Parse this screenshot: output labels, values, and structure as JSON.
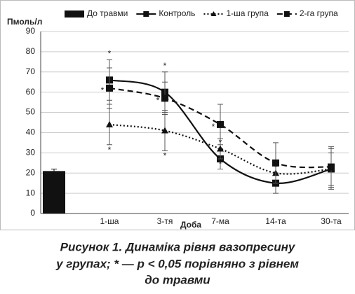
{
  "chart_data": {
    "type": "line",
    "y_label": "Пмоль/л",
    "x_label": "Доба",
    "categories": [
      null,
      "1-ша",
      "3-тя",
      "7-ма",
      "14-та",
      "30-та"
    ],
    "ylim": [
      0,
      90
    ],
    "yticks": [
      0,
      10,
      20,
      30,
      40,
      50,
      60,
      70,
      80,
      90
    ],
    "grid": true,
    "series": [
      {
        "name": "До травми",
        "color": "#111111",
        "kind": "bar",
        "values": [
          21,
          null,
          null,
          null,
          null,
          null
        ],
        "errors": [
          1,
          null,
          null,
          null,
          null,
          null
        ]
      },
      {
        "name": "Контроль",
        "color": "#111111",
        "kind": "line",
        "dash": "solid",
        "marker": "square",
        "values": [
          null,
          66,
          60,
          27,
          15,
          22
        ],
        "errors": [
          null,
          10,
          10,
          5,
          5,
          10
        ],
        "significance": [
          null,
          "*",
          "*",
          "*",
          "*",
          null
        ]
      },
      {
        "name": "1-ша група",
        "color": "#111111",
        "kind": "line",
        "dash": "dotted",
        "marker": "triangle",
        "values": [
          null,
          44,
          41,
          32,
          20,
          22
        ],
        "errors": [
          null,
          10,
          10,
          5,
          5,
          8
        ],
        "significance": [
          null,
          "*",
          "*",
          "*",
          null,
          null
        ]
      },
      {
        "name": "2-га група",
        "color": "#111111",
        "kind": "line",
        "dash": "dashed",
        "marker": "square",
        "values": [
          null,
          62,
          57,
          44,
          25,
          23
        ],
        "errors": [
          null,
          10,
          8,
          10,
          10,
          10
        ],
        "significance": [
          null,
          "*",
          "*",
          "*",
          null,
          null
        ]
      }
    ],
    "caption": [
      "Рисунок 1. Динаміка рівня вазопресину",
      "у групах; * — p < 0,05 порівняно з рівнем",
      "до травми"
    ]
  }
}
